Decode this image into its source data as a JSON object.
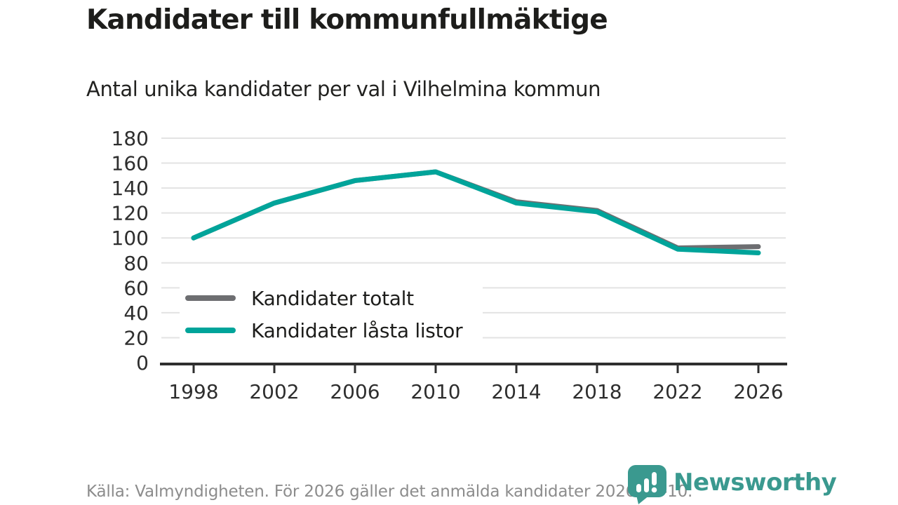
{
  "header": {
    "title": "Kandidater till kommunfullmäktige",
    "subtitle": "Antal unika kandidater per val i Vilhelmina kommun"
  },
  "chart_data": {
    "type": "line",
    "x": [
      1998,
      2002,
      2006,
      2010,
      2014,
      2018,
      2022,
      2026
    ],
    "series": [
      {
        "name": "Kandidater totalt",
        "color": "#6d6e71",
        "values": [
          100,
          128,
          146,
          153,
          129,
          122,
          92,
          93
        ]
      },
      {
        "name": "Kandidater låsta listor",
        "color": "#00a49a",
        "values": [
          100,
          128,
          146,
          153,
          128,
          121,
          91,
          88
        ]
      }
    ],
    "title": "Kandidater till kommunfullmäktige",
    "subtitle": "Antal unika kandidater per val i Vilhelmina kommun",
    "xlabel": "",
    "ylabel": "",
    "ylim": [
      0,
      180
    ],
    "yticks": [
      0,
      20,
      40,
      60,
      80,
      100,
      120,
      140,
      160,
      180
    ],
    "grid": true,
    "legend_position": "inside-bottom-left",
    "line_width": 7
  },
  "footer": {
    "source": "Källa: Valmyndigheten. För 2026 gäller det anmälda kandidater 2026-04-10.",
    "brand": "Newsworthy"
  },
  "colors": {
    "accent_teal": "#00a49a",
    "series_gray": "#6d6e71",
    "grid": "#e3e3e3",
    "axis": "#2e2e2e",
    "tick_label": "#2e2e2e",
    "title_text": "#1d1d1b",
    "muted_text": "#8c8c8c",
    "logo_teal": "#3a998f"
  }
}
